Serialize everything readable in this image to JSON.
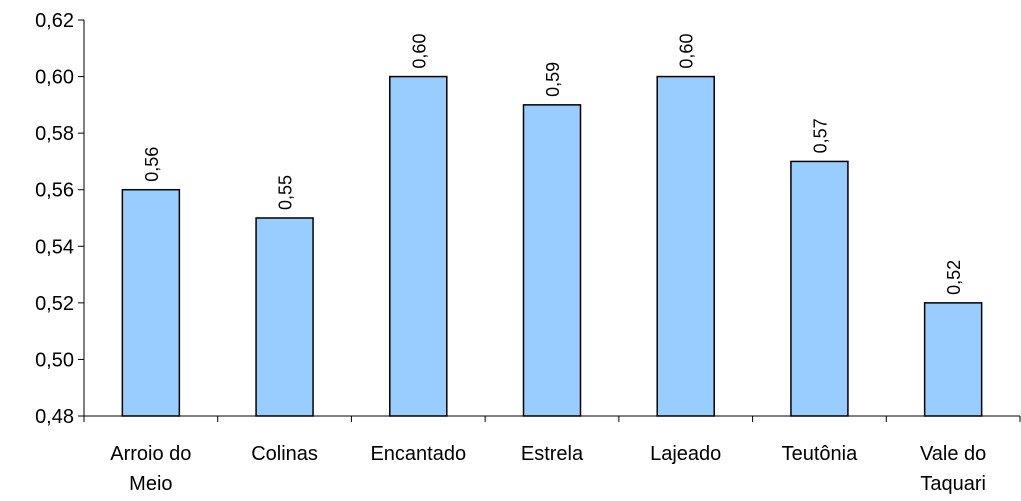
{
  "chart_data": {
    "type": "bar",
    "categories": [
      "Arroio do Meio",
      "Colinas",
      "Encantado",
      "Estrela",
      "Lajeado",
      "Teutônia",
      "Vale do Taquari"
    ],
    "category_lines": [
      [
        "Arroio do",
        "Meio"
      ],
      [
        "Colinas"
      ],
      [
        "Encantado"
      ],
      [
        "Estrela"
      ],
      [
        "Lajeado"
      ],
      [
        "Teutônia"
      ],
      [
        "Vale do",
        "Taquari"
      ]
    ],
    "values": [
      0.56,
      0.55,
      0.6,
      0.59,
      0.6,
      0.57,
      0.52
    ],
    "data_labels": [
      "0,56",
      "0,55",
      "0,60",
      "0,59",
      "0,60",
      "0,57",
      "0,52"
    ],
    "ylim": [
      0.48,
      0.62
    ],
    "yticks": [
      0.48,
      0.5,
      0.52,
      0.54,
      0.56,
      0.58,
      0.6,
      0.62
    ],
    "ytick_labels": [
      "0,48",
      "0,50",
      "0,52",
      "0,54",
      "0,56",
      "0,58",
      "0,60",
      "0,62"
    ],
    "title": "",
    "xlabel": "",
    "ylabel": "",
    "grid": false,
    "legend": "none",
    "bar_color": "#99ccff",
    "bar_edge_color": "#000000"
  }
}
